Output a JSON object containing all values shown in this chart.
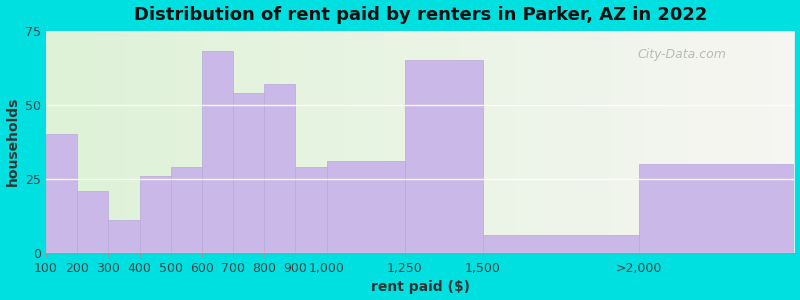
{
  "title": "Distribution of rent paid by renters in Parker, AZ in 2022",
  "xlabel": "rent paid ($)",
  "ylabel": "households",
  "tick_labels": [
    "100",
    "200",
    "300",
    "400",
    "500",
    "600",
    "700",
    "800",
    "900",
    "1,000",
    "1,250",
    "1,500",
    ">2,000"
  ],
  "values": [
    40,
    21,
    11,
    26,
    29,
    68,
    54,
    57,
    29,
    31,
    65,
    6,
    30
  ],
  "bar_color": "#c9b8e8",
  "bar_edge_color": "#b8a8d8",
  "ylim": [
    0,
    75
  ],
  "yticks": [
    0,
    25,
    50,
    75
  ],
  "background_outer": "#00e0e0",
  "title_fontsize": 13,
  "axis_label_fontsize": 10,
  "tick_fontsize": 9,
  "watermark_text": "City-Data.com",
  "figsize": [
    8.0,
    3.0
  ],
  "dpi": 100
}
